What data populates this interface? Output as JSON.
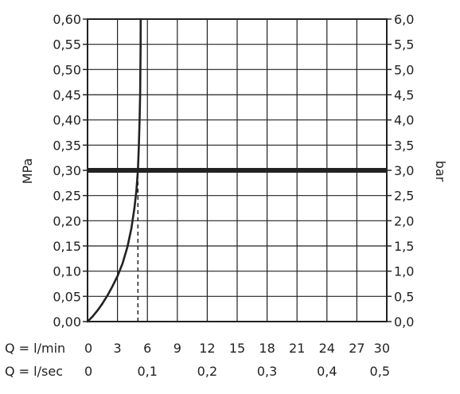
{
  "chart_data": {
    "type": "line",
    "x_axis_flow_lmin": {
      "label": "Q = l/min",
      "range": [
        0,
        30
      ],
      "ticks": [
        "0",
        "3",
        "6",
        "9",
        "12",
        "15",
        "18",
        "21",
        "24",
        "27",
        "30"
      ]
    },
    "x_axis_flow_lsec": {
      "label": "Q = l/sec",
      "range": [
        0,
        0.5
      ],
      "ticks": [
        {
          "value": 0,
          "label": "0"
        },
        {
          "value": 0.1,
          "label": "0,1"
        },
        {
          "value": 0.2,
          "label": "0,2"
        },
        {
          "value": 0.3,
          "label": "0,3"
        },
        {
          "value": 0.4,
          "label": "0,4"
        },
        {
          "value": 0.5,
          "label": "0,5"
        }
      ]
    },
    "y_axis_left": {
      "label": "MPa",
      "range": [
        0,
        0.6
      ],
      "ticks": [
        "0,00",
        "0,05",
        "0,10",
        "0,15",
        "0,20",
        "0,25",
        "0,30",
        "0,35",
        "0,40",
        "0,45",
        "0,50",
        "0,55",
        "0,60"
      ]
    },
    "y_axis_right": {
      "label": "bar",
      "range": [
        0,
        6
      ],
      "ticks": [
        "0,0",
        "0,5",
        "1,0",
        "1,5",
        "2,0",
        "2,5",
        "3,0",
        "3,5",
        "4,0",
        "4,5",
        "5,0",
        "5,5",
        "6,0"
      ]
    },
    "grid": true,
    "series": [
      {
        "style": "solid",
        "color": "#222222",
        "points": [
          [
            0,
            0
          ],
          [
            0.5,
            0.01
          ],
          [
            1,
            0.022
          ],
          [
            1.5,
            0.036
          ],
          [
            2,
            0.052
          ],
          [
            2.5,
            0.07
          ],
          [
            3,
            0.09
          ],
          [
            3.5,
            0.115
          ],
          [
            4,
            0.148
          ],
          [
            4.4,
            0.185
          ],
          [
            4.7,
            0.225
          ],
          [
            4.9,
            0.26
          ],
          [
            5.05,
            0.3
          ],
          [
            5.15,
            0.35
          ],
          [
            5.22,
            0.4
          ],
          [
            5.27,
            0.45
          ],
          [
            5.3,
            0.5
          ],
          [
            5.32,
            0.55
          ],
          [
            5.33,
            0.6
          ]
        ]
      }
    ],
    "reference_lines": [
      {
        "orientation": "horizontal",
        "y": 0.3,
        "style": "thick",
        "color": "#222222"
      },
      {
        "orientation": "vertical",
        "x": 5.05,
        "y_from": 0,
        "y_to": 0.3,
        "style": "dashed",
        "color": "#222222"
      }
    ]
  }
}
